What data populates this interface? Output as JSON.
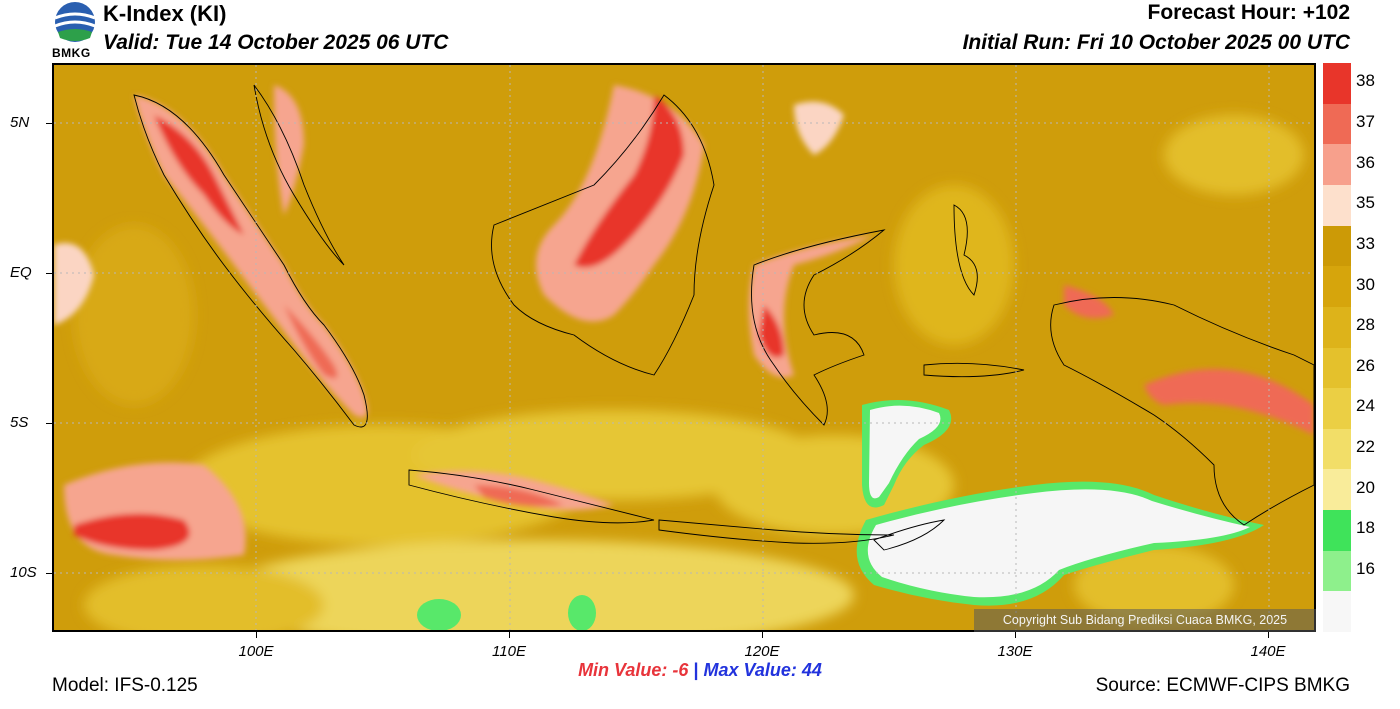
{
  "header": {
    "title": "K-Index (KI)",
    "valid": "Valid: Tue 14 October 2025 06 UTC",
    "forecast_hour": "Forecast Hour: +102",
    "initial_run": "Initial Run: Fri 10 October 2025 00 UTC",
    "logo_text": "BMKG"
  },
  "map": {
    "lat_labels": [
      "5N",
      "EQ",
      "5S",
      "10S"
    ],
    "lon_labels": [
      "100E",
      "110E",
      "120E",
      "130E",
      "140E"
    ],
    "copyright": "Copyright Sub Bidang Prediksi Cuaca BMKG, 2025"
  },
  "colorbar": {
    "labels": [
      "38",
      "37",
      "36",
      "35",
      "33",
      "30",
      "28",
      "26",
      "24",
      "22",
      "20",
      "18",
      "16"
    ],
    "colors": [
      "#e8352a",
      "#ef6a55",
      "#f7a08c",
      "#fde0cc",
      "#cc9a06",
      "#d6a50c",
      "#ddb31a",
      "#e4c12c",
      "#ebcf44",
      "#f2de68",
      "#f9ec9a",
      "#3fe35a",
      "#8ef08c",
      "#f7f7f7"
    ]
  },
  "stats": {
    "min_label": "Min Value:",
    "min_value": "-6",
    "separator": "|",
    "max_label": "Max Value:",
    "max_value": "44"
  },
  "footer": {
    "model": "Model: IFS-0.125",
    "source": "Source: ECMWF-CIPS BMKG"
  }
}
